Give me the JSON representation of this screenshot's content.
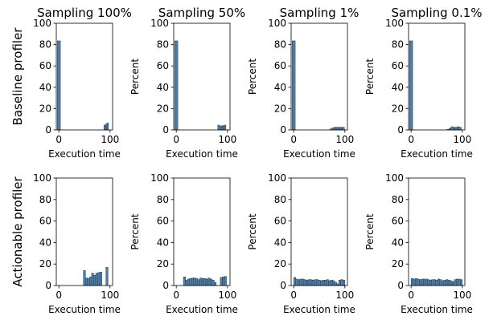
{
  "chart_data": {
    "type": "bar",
    "layout": {
      "rows": 2,
      "cols": 4
    },
    "column_titles": [
      "Sampling 100%",
      "Sampling 50%",
      "Sampling 1%",
      "Sampling 0.1%"
    ],
    "row_labels": [
      "Baseline profiler",
      "Actionable profiler"
    ],
    "xlabel": "Execution time",
    "ylabel": "Percent",
    "xlim": [
      -5,
      105
    ],
    "ylim": [
      0,
      100
    ],
    "xticks": [
      0,
      100
    ],
    "yticks": [
      0,
      20,
      40,
      60,
      80,
      100
    ],
    "bar_color": "#4c7fab",
    "bar_edge_color": "#2b3a4a",
    "panels": [
      {
        "row": 0,
        "col": 0,
        "ylabel_shown": false,
        "bins": [
          [
            -3,
            3,
            83.5
          ],
          [
            88,
            91,
            4.5
          ],
          [
            91,
            94,
            5.5
          ],
          [
            94,
            97,
            6.5
          ]
        ]
      },
      {
        "row": 0,
        "col": 1,
        "ylabel_shown": true,
        "bins": [
          [
            -3,
            3,
            83.5
          ],
          [
            81,
            85,
            4.5
          ],
          [
            85,
            88,
            3.5
          ],
          [
            88,
            91,
            4
          ],
          [
            91,
            94,
            4
          ],
          [
            94,
            97,
            4.5
          ]
        ]
      },
      {
        "row": 0,
        "col": 2,
        "ylabel_shown": true,
        "bins": [
          [
            -3,
            3,
            83.5
          ],
          [
            71,
            75,
            1
          ],
          [
            75,
            79,
            2
          ],
          [
            79,
            83,
            2.5
          ],
          [
            83,
            87,
            2.5
          ],
          [
            87,
            91,
            2.5
          ],
          [
            91,
            95,
            2.5
          ],
          [
            95,
            99,
            2.5
          ]
        ]
      },
      {
        "row": 0,
        "col": 3,
        "ylabel_shown": true,
        "bins": [
          [
            -3,
            3,
            83.5
          ],
          [
            70,
            74,
            0.5
          ],
          [
            74,
            78,
            1.5
          ],
          [
            78,
            82,
            3
          ],
          [
            82,
            86,
            2.5
          ],
          [
            86,
            90,
            2.5
          ],
          [
            90,
            94,
            3
          ],
          [
            94,
            98,
            2.5
          ]
        ]
      },
      {
        "row": 1,
        "col": 0,
        "ylabel_shown": false,
        "bins": [
          [
            48,
            52,
            14
          ],
          [
            52,
            56,
            7
          ],
          [
            56,
            60,
            6.5
          ],
          [
            60,
            64,
            8
          ],
          [
            64,
            68,
            11.5
          ],
          [
            68,
            72,
            9.5
          ],
          [
            72,
            76,
            11.5
          ],
          [
            76,
            80,
            12
          ],
          [
            80,
            84,
            12.5
          ],
          [
            84,
            88,
            0
          ],
          [
            88,
            92,
            0
          ],
          [
            92,
            96,
            17
          ]
        ]
      },
      {
        "row": 1,
        "col": 1,
        "ylabel_shown": true,
        "bins": [
          [
            14,
            18,
            8
          ],
          [
            18,
            22,
            5
          ],
          [
            22,
            26,
            6
          ],
          [
            26,
            30,
            6.5
          ],
          [
            30,
            34,
            7
          ],
          [
            34,
            38,
            7
          ],
          [
            38,
            42,
            6.5
          ],
          [
            42,
            46,
            5.5
          ],
          [
            46,
            50,
            7
          ],
          [
            50,
            54,
            6.5
          ],
          [
            54,
            58,
            6.5
          ],
          [
            58,
            62,
            6
          ],
          [
            62,
            66,
            7
          ],
          [
            66,
            70,
            6
          ],
          [
            70,
            74,
            5
          ],
          [
            74,
            78,
            3
          ],
          [
            78,
            82,
            0
          ],
          [
            82,
            86,
            0
          ],
          [
            86,
            90,
            7.5
          ],
          [
            90,
            94,
            8
          ],
          [
            94,
            98,
            8.5
          ]
        ]
      },
      {
        "row": 1,
        "col": 2,
        "ylabel_shown": true,
        "bins": [
          [
            0,
            4,
            7.5
          ],
          [
            4,
            8,
            6
          ],
          [
            8,
            12,
            5.5
          ],
          [
            12,
            16,
            6
          ],
          [
            16,
            20,
            6
          ],
          [
            20,
            24,
            5.5
          ],
          [
            24,
            28,
            5
          ],
          [
            28,
            32,
            5.5
          ],
          [
            32,
            36,
            5.5
          ],
          [
            36,
            40,
            5
          ],
          [
            40,
            44,
            5.5
          ],
          [
            44,
            48,
            5.5
          ],
          [
            48,
            52,
            5
          ],
          [
            52,
            56,
            4.5
          ],
          [
            56,
            60,
            5
          ],
          [
            60,
            64,
            5
          ],
          [
            64,
            68,
            5.5
          ],
          [
            68,
            72,
            4.5
          ],
          [
            72,
            76,
            5
          ],
          [
            76,
            80,
            4.5
          ],
          [
            80,
            84,
            3
          ],
          [
            84,
            88,
            1.5
          ],
          [
            88,
            92,
            5
          ],
          [
            92,
            96,
            5.5
          ],
          [
            96,
            100,
            5
          ]
        ]
      },
      {
        "row": 1,
        "col": 3,
        "ylabel_shown": true,
        "bins": [
          [
            0,
            4,
            6.5
          ],
          [
            4,
            8,
            6
          ],
          [
            8,
            12,
            6.5
          ],
          [
            12,
            16,
            6
          ],
          [
            16,
            20,
            5.5
          ],
          [
            20,
            24,
            6
          ],
          [
            24,
            28,
            6
          ],
          [
            28,
            32,
            6
          ],
          [
            32,
            36,
            5.5
          ],
          [
            36,
            40,
            5
          ],
          [
            40,
            44,
            5.5
          ],
          [
            44,
            48,
            5.5
          ],
          [
            48,
            52,
            5
          ],
          [
            52,
            56,
            6
          ],
          [
            56,
            60,
            5.5
          ],
          [
            60,
            64,
            4.5
          ],
          [
            64,
            68,
            5
          ],
          [
            68,
            72,
            5.5
          ],
          [
            72,
            76,
            5
          ],
          [
            76,
            80,
            4.5
          ],
          [
            80,
            84,
            3.5
          ],
          [
            84,
            88,
            5.5
          ],
          [
            88,
            92,
            6
          ],
          [
            92,
            96,
            6
          ],
          [
            96,
            100,
            5.5
          ]
        ]
      }
    ]
  }
}
